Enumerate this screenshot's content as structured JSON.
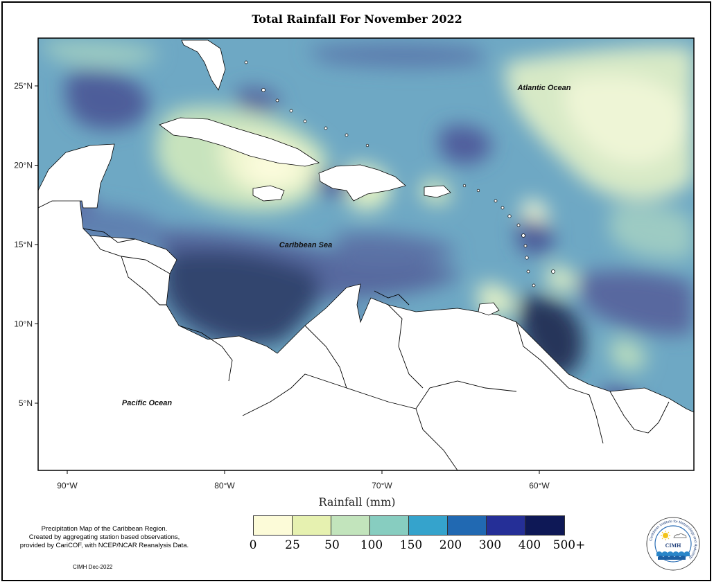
{
  "title": "Total Rainfall For November 2022",
  "map": {
    "x_ticks": [
      {
        "label": "90°W",
        "lon": -90
      },
      {
        "label": "80°W",
        "lon": -80
      },
      {
        "label": "70°W",
        "lon": -70
      },
      {
        "label": "60°W",
        "lon": -60
      }
    ],
    "y_ticks": [
      {
        "label": "25°N",
        "lat": 25
      },
      {
        "label": "20°N",
        "lat": 20
      },
      {
        "label": "15°N",
        "lat": 15
      },
      {
        "label": "10°N",
        "lat": 10
      },
      {
        "label": "5°N",
        "lat": 5
      }
    ],
    "region_labels": {
      "atlantic": "Atlantic Ocean",
      "caribbean": "Caribbean Sea",
      "pacific": "Pacific Ocean"
    }
  },
  "legend": {
    "title": "Rainfall (mm)",
    "ticks": [
      "0",
      "25",
      "50",
      "100",
      "150",
      "200",
      "300",
      "400",
      "500+"
    ],
    "colors": [
      "#fcfbd8",
      "#e6f1b0",
      "#c2e4bc",
      "#87cdc0",
      "#35a3cc",
      "#2169b2",
      "#252f97",
      "#0e1856"
    ]
  },
  "notes": {
    "line1": "Precipitation Map of the Caribbean Region.",
    "line2": "Created by aggregating station based observations,",
    "line3": "provided by CariCOF, with NCEP/NCAR Reanalysis Data.",
    "credit": "CIMH Dec-2022"
  },
  "logo": {
    "ring_text": "Caribbean Institute for Meteorology and Hydrology",
    "abbr": "CIMH"
  }
}
